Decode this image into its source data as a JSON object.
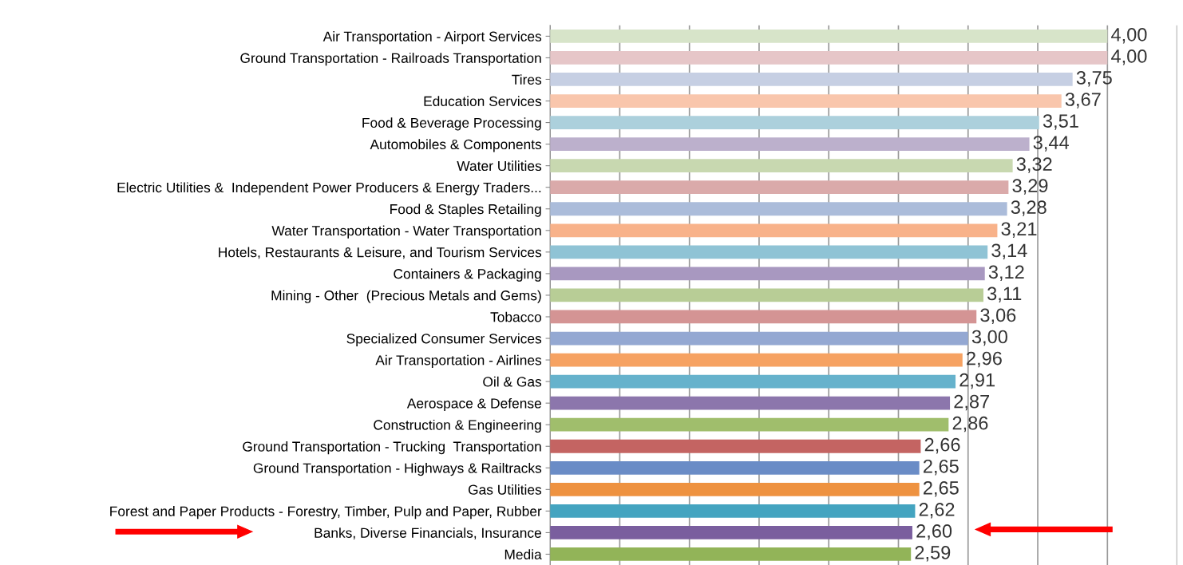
{
  "chart_data": {
    "type": "bar",
    "orientation": "horizontal",
    "categories": [
      "Air Transportation - Airport Services",
      "Ground Transportation - Railroads Transportation",
      "Tires",
      "Education Services",
      "Food & Beverage Processing",
      "Automobiles & Components",
      "Water Utilities",
      "Electric Utilities &  Independent Power Producers & Energy Traders...",
      "Food & Staples Retailing",
      "Water Transportation - Water Transportation",
      "Hotels, Restaurants & Leisure, and Tourism Services",
      "Containers & Packaging",
      "Mining - Other  (Precious Metals and Gems)",
      "Tobacco",
      "Specialized Consumer Services",
      "Air Transportation - Airlines",
      "Oil & Gas",
      "Aerospace & Defense",
      "Construction & Engineering",
      "Ground Transportation - Trucking  Transportation",
      "Ground Transportation - Highways & Railtracks",
      "Gas Utilities",
      "Forest and Paper Products - Forestry, Timber, Pulp and Paper, Rubber",
      "Banks, Diverse Financials, Insurance",
      "Media"
    ],
    "values": [
      4.0,
      4.0,
      3.75,
      3.67,
      3.51,
      3.44,
      3.32,
      3.29,
      3.28,
      3.21,
      3.14,
      3.12,
      3.11,
      3.06,
      3.0,
      2.96,
      2.91,
      2.87,
      2.86,
      2.66,
      2.65,
      2.65,
      2.62,
      2.6,
      2.59
    ],
    "value_labels": [
      "4,00",
      "4,00",
      "3,75",
      "3,67",
      "3,51",
      "3,44",
      "3,32",
      "3,29",
      "3,28",
      "3,21",
      "3,14",
      "3,12",
      "3,11",
      "3,06",
      "3,00",
      "2,96",
      "2,91",
      "2,87",
      "2,86",
      "2,66",
      "2,65",
      "2,65",
      "2,62",
      "2,60",
      "2,59"
    ],
    "colors": [
      "#d7e4c9",
      "#e6c6c8",
      "#c6cfe3",
      "#f9c6ac",
      "#acd0dc",
      "#bcb0cc",
      "#c8d8b0",
      "#daaaaa",
      "#abbcda",
      "#f8b28a",
      "#8fc3d5",
      "#a898c0",
      "#b8cd96",
      "#d49494",
      "#94a8d2",
      "#f6a262",
      "#66b2cc",
      "#8c76ac",
      "#a0be6c",
      "#c46462",
      "#6a8cc6",
      "#ee9240",
      "#44a4c0",
      "#7a5e9e",
      "#92b458"
    ],
    "xlim": [
      0,
      4.5
    ],
    "xticks": [
      {
        "value": 0,
        "label": null
      },
      {
        "value": 0.5,
        "label": null
      },
      {
        "value": 1,
        "label": null
      },
      {
        "value": 1.5,
        "label": null
      },
      {
        "value": 2,
        "label": null
      },
      {
        "value": 2.5,
        "label": null
      },
      {
        "value": 3,
        "label": null
      },
      {
        "value": 3.5,
        "label": null
      },
      {
        "value": 4,
        "label": null
      },
      {
        "value": 4.5,
        "label": null
      }
    ],
    "grid": "x",
    "tick_labels": "y"
  }
}
